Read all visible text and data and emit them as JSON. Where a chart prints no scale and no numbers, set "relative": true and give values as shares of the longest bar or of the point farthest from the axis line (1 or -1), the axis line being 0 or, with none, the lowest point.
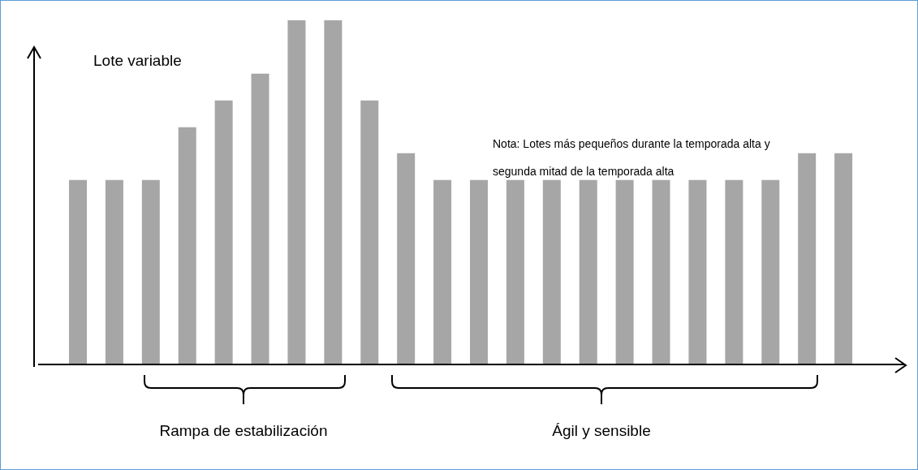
{
  "chart_data": {
    "type": "bar",
    "relative": true,
    "ylabel": "Lote variable",
    "color": "#a6a6a6",
    "categories": [
      null,
      null,
      null,
      null,
      null,
      null,
      null,
      null,
      null,
      null,
      null,
      null,
      null,
      null,
      null,
      null,
      null,
      null,
      null,
      null,
      null,
      null
    ],
    "values": [
      0.536,
      0.536,
      0.536,
      0.689,
      0.767,
      0.845,
      1,
      1,
      0.767,
      0.614,
      0.536,
      0.536,
      0.536,
      0.536,
      0.536,
      0.536,
      0.536,
      0.536,
      0.536,
      0.536,
      0.614,
      0.614
    ],
    "annotations": [
      "Nota: Lotes más pequeños durante la temporada alta y segunda mitad de la temporada alta",
      "Rampa de estabilización",
      "Ágil y sensible"
    ]
  }
}
